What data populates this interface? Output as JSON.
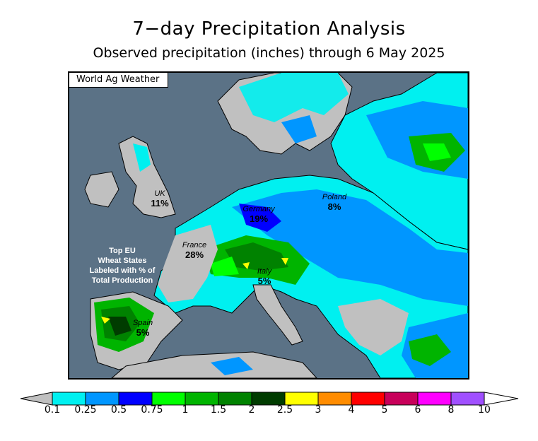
{
  "title": "7−day Precipitation Analysis",
  "subtitle": "Observed precipitation (inches) through 6 May 2025",
  "source": "World Ag Weather",
  "note": [
    "Top EU",
    "Wheat States",
    "Labeled with % of",
    "Total Production"
  ],
  "regions": [
    {
      "id": "uk",
      "name": "UK",
      "pct": "11%"
    },
    {
      "id": "france",
      "name": "France",
      "pct": "28%"
    },
    {
      "id": "germany",
      "name": "Germany",
      "pct": "19%"
    },
    {
      "id": "poland",
      "name": "Poland",
      "pct": "8%"
    },
    {
      "id": "italy",
      "name": "Italy",
      "pct": "5%"
    },
    {
      "id": "spain",
      "name": "Spain",
      "pct": "5%"
    }
  ],
  "legend": {
    "ticks": [
      "0.1",
      "0.25",
      "0.5",
      "0.75",
      "1",
      "1.5",
      "2",
      "2.5",
      "3",
      "4",
      "5",
      "6",
      "8",
      "10"
    ],
    "colors": [
      "#00f0f0",
      "#0096ff",
      "#0000ff",
      "#00ff00",
      "#00b400",
      "#008200",
      "#003c00",
      "#ffff00",
      "#ff8c00",
      "#ff0000",
      "#c8005a",
      "#ff00ff",
      "#a050ff"
    ],
    "low_color": "#c0c0c0",
    "high_color": "#ffffff"
  },
  "palette": {
    "sea": "#5b7286",
    "dry_land": "#c0c0c0"
  }
}
